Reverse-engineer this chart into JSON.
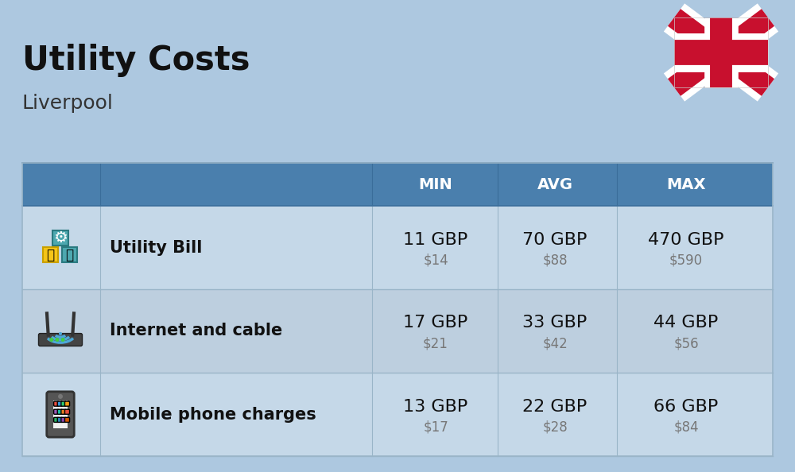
{
  "title": "Utility Costs",
  "subtitle": "Liverpool",
  "background_color": "#adc8e0",
  "header_bg_color": "#4a7fad",
  "header_text_color": "#ffffff",
  "row_alt_colors": [
    "#c5d8e8",
    "#bdcfdf"
  ],
  "header_labels": [
    "MIN",
    "AVG",
    "MAX"
  ],
  "rows": [
    {
      "label": "Utility Bill",
      "min_gbp": "11 GBP",
      "min_usd": "$14",
      "avg_gbp": "70 GBP",
      "avg_usd": "$88",
      "max_gbp": "470 GBP",
      "max_usd": "$590"
    },
    {
      "label": "Internet and cable",
      "min_gbp": "17 GBP",
      "min_usd": "$21",
      "avg_gbp": "33 GBP",
      "avg_usd": "$42",
      "max_gbp": "44 GBP",
      "max_usd": "$56"
    },
    {
      "label": "Mobile phone charges",
      "min_gbp": "13 GBP",
      "min_usd": "$17",
      "avg_gbp": "22 GBP",
      "avg_usd": "$28",
      "max_gbp": "66 GBP",
      "max_usd": "$84"
    }
  ],
  "gbp_fontsize": 16,
  "usd_fontsize": 12,
  "label_fontsize": 15,
  "header_fontsize": 14
}
